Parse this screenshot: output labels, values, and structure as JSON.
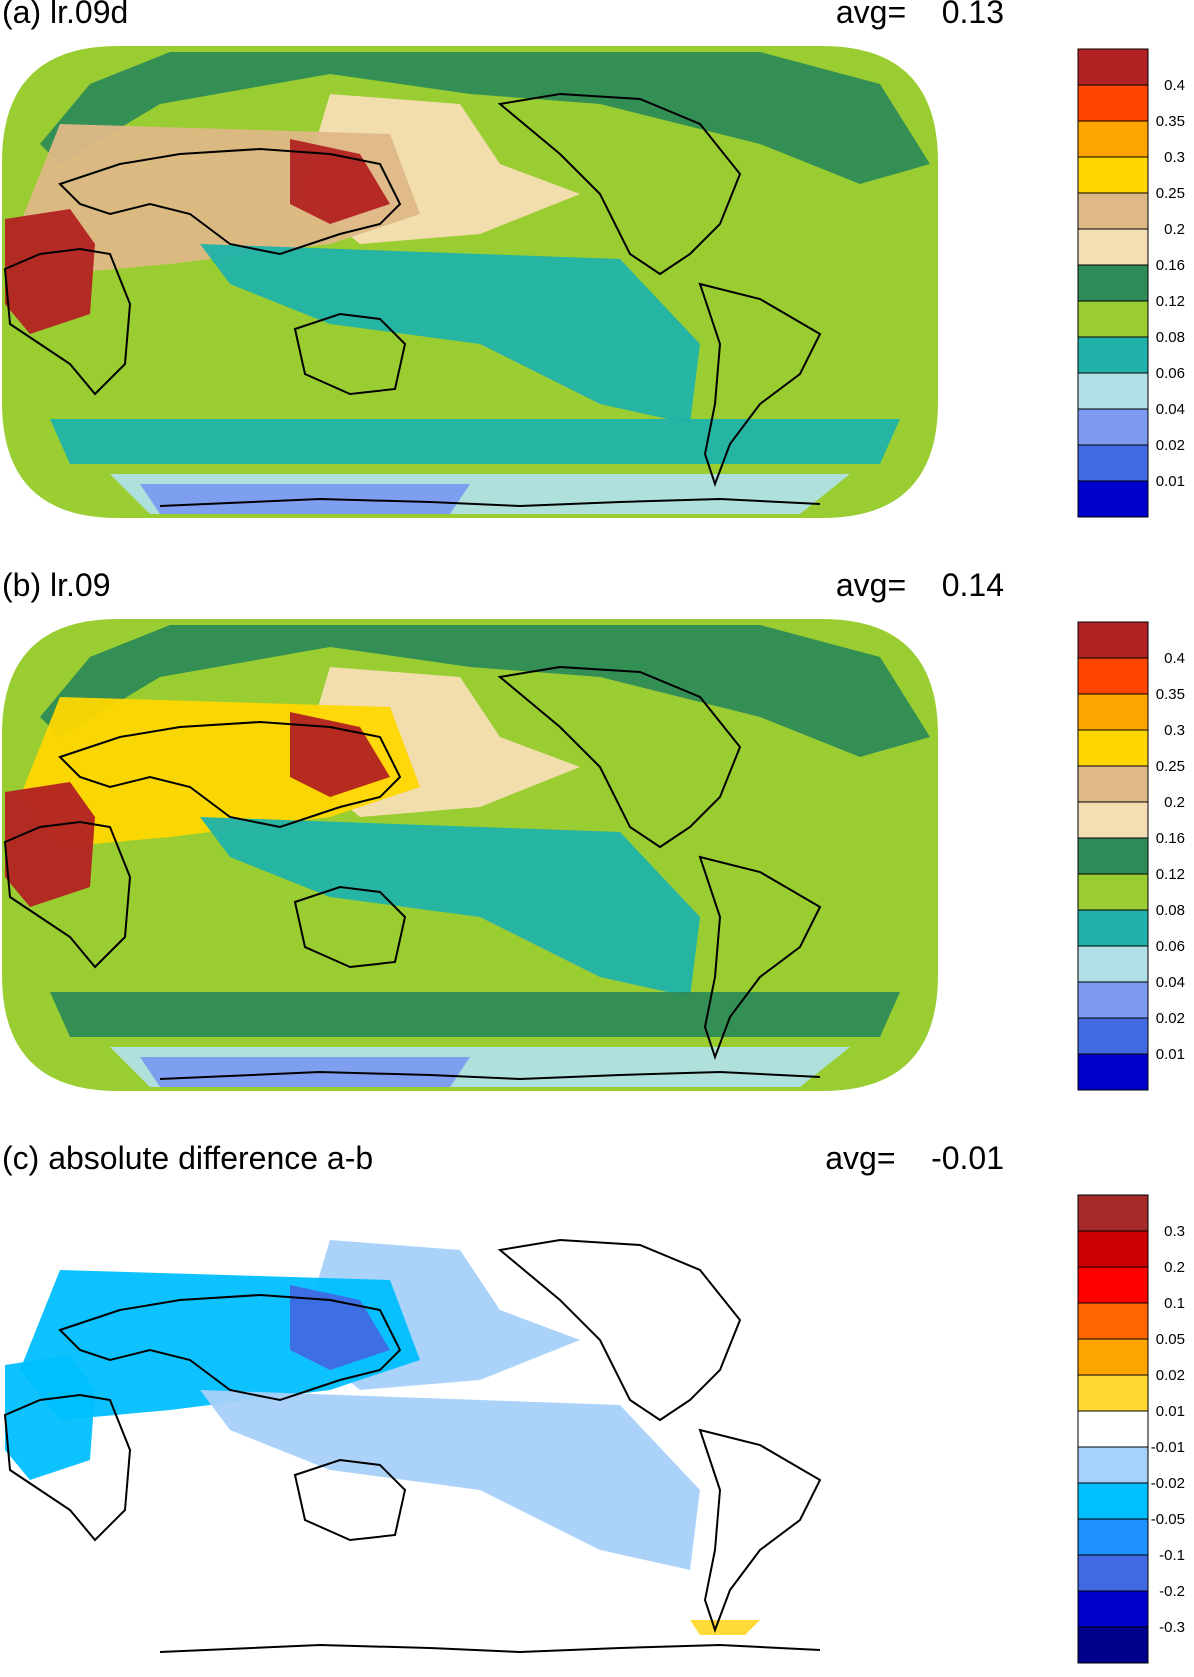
{
  "figure": {
    "panels": [
      {
        "id": "a",
        "title": "(a) lr.09d",
        "avg_label": "avg=",
        "avg_value": "0.13",
        "fill_mode": "field",
        "legend": {
          "colors": [
            "#b22222",
            "#ff4500",
            "#ffa500",
            "#ffd700",
            "#deb887",
            "#f5deb3",
            "#2e8b57",
            "#9acd32",
            "#20b2aa",
            "#b0e0e6",
            "#7b9af0",
            "#4169e1",
            "#0000cd"
          ],
          "labels": [
            "0.4",
            "0.35",
            "0.3",
            "0.25",
            "0.2",
            "0.16",
            "0.12",
            "0.08",
            "0.06",
            "0.04",
            "0.02",
            "0.01"
          ]
        },
        "regions": [
          {
            "name": "arctic-band",
            "color": "#2e8b57"
          },
          {
            "name": "north-pacific-band",
            "color": "#f5deb3"
          },
          {
            "name": "asia-hotspot",
            "color": "#deb887"
          },
          {
            "name": "east-asia-peak",
            "color": "#b22222"
          },
          {
            "name": "sahara-peak",
            "color": "#b22222"
          },
          {
            "name": "tropical-pacific",
            "color": "#20b2aa"
          },
          {
            "name": "southern-ocean-band",
            "color": "#20b2aa"
          },
          {
            "name": "antarctic-coast",
            "color": "#b0e0e6"
          },
          {
            "name": "antarctica",
            "color": "#7b9af0"
          }
        ]
      },
      {
        "id": "b",
        "title": "(b) lr.09",
        "avg_label": "avg=",
        "avg_value": "0.14",
        "fill_mode": "field",
        "legend": {
          "colors": [
            "#b22222",
            "#ff4500",
            "#ffa500",
            "#ffd700",
            "#deb887",
            "#f5deb3",
            "#2e8b57",
            "#9acd32",
            "#20b2aa",
            "#b0e0e6",
            "#7b9af0",
            "#4169e1",
            "#0000cd"
          ],
          "labels": [
            "0.4",
            "0.35",
            "0.3",
            "0.25",
            "0.2",
            "0.16",
            "0.12",
            "0.08",
            "0.06",
            "0.04",
            "0.02",
            "0.01"
          ]
        },
        "regions": [
          {
            "name": "arctic-band",
            "color": "#2e8b57"
          },
          {
            "name": "north-pacific-band",
            "color": "#f5deb3"
          },
          {
            "name": "asia-hotspot",
            "color": "#ffd700"
          },
          {
            "name": "east-asia-peak",
            "color": "#b22222"
          },
          {
            "name": "sahara-peak",
            "color": "#b22222"
          },
          {
            "name": "tropical-pacific",
            "color": "#20b2aa"
          },
          {
            "name": "southern-ocean-band",
            "color": "#2e8b57"
          },
          {
            "name": "antarctic-coast",
            "color": "#b0e0e6"
          },
          {
            "name": "antarctica",
            "color": "#7b9af0"
          }
        ]
      },
      {
        "id": "c",
        "title": "(c) absolute difference a-b",
        "avg_label": "avg=",
        "avg_value": "-0.01",
        "fill_mode": "difference",
        "legend": {
          "colors": [
            "#a52a2a",
            "#cc0000",
            "#ff0000",
            "#ff6600",
            "#ffa500",
            "#ffd92f",
            "#ffffff",
            "#a6d1fa",
            "#00bfff",
            "#1e90ff",
            "#4169e1",
            "#0000cd",
            "#00008b"
          ],
          "labels": [
            "0.3",
            "0.2",
            "0.1",
            "0.05",
            "0.02",
            "0.01",
            "-0.01",
            "-0.02",
            "-0.05",
            "-0.1",
            "-0.2",
            "-0.3"
          ]
        },
        "regions": [
          {
            "name": "north-pacific-band",
            "color": "#a6d1fa"
          },
          {
            "name": "asia-hotspot",
            "color": "#00bfff"
          },
          {
            "name": "east-asia-peak",
            "color": "#4169e1"
          },
          {
            "name": "sahara-peak",
            "color": "#00bfff"
          },
          {
            "name": "tropical-pacific",
            "color": "#a6d1fa"
          },
          {
            "name": "antarctic-patch",
            "color": "#ffd92f"
          }
        ]
      }
    ]
  }
}
